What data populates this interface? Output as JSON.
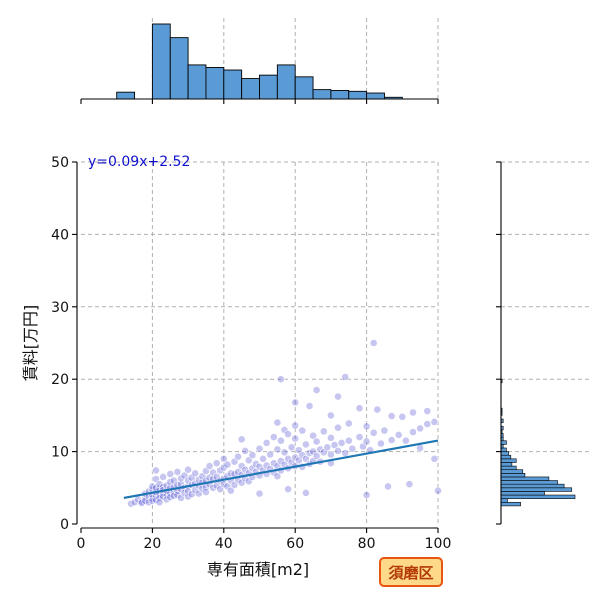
{
  "chart_data": {
    "type": "scatter",
    "xlabel": "専有面積[m2]",
    "ylabel": "賃料[万円]",
    "xlim": [
      0,
      100
    ],
    "ylim": [
      0,
      50
    ],
    "x_ticks": [
      "0",
      "20",
      "40",
      "60",
      "80",
      "100"
    ],
    "y_ticks": [
      "0",
      "10",
      "20",
      "30",
      "40",
      "50"
    ],
    "grid": true,
    "regression": {
      "label": "y=0.09x+2.52",
      "slope": 0.09,
      "intercept": 2.52,
      "x_range": [
        12,
        100
      ]
    },
    "badge": "須磨区",
    "colors": {
      "points": "#5b5bd6",
      "line": "#1f77b4",
      "hist": "#5b9bd5",
      "badge_border": "#e8550e",
      "badge_fill": "#ffd98a"
    },
    "x_hist": {
      "bin_width": 5,
      "bin_starts": [
        10,
        15,
        20,
        25,
        30,
        35,
        40,
        45,
        50,
        55,
        60,
        65,
        70,
        75,
        80,
        85,
        90,
        95
      ],
      "counts": [
        8,
        0,
        88,
        72,
        40,
        37,
        34,
        24,
        28,
        40,
        26,
        11,
        10,
        9,
        7,
        2,
        0,
        0
      ]
    },
    "y_hist": {
      "bin_width": 0.5,
      "bin_starts": [
        2.5,
        3.0,
        3.5,
        4.0,
        4.5,
        5.0,
        5.5,
        6.0,
        6.5,
        7.0,
        7.5,
        8.0,
        8.5,
        9.0,
        9.5,
        10.0,
        10.5,
        11.0,
        11.5,
        12.0,
        12.5,
        13.0,
        13.5,
        14.0,
        14.5,
        15.0,
        15.5,
        16.0,
        19.5
      ],
      "counts": [
        18,
        6,
        68,
        40,
        65,
        58,
        52,
        44,
        22,
        20,
        14,
        10,
        14,
        9,
        7,
        5,
        2,
        5,
        2,
        2,
        1,
        2,
        0,
        2,
        0,
        1,
        1,
        0,
        1
      ]
    },
    "points": [
      [
        14,
        2.8
      ],
      [
        15,
        3.0
      ],
      [
        16,
        3.4
      ],
      [
        17,
        3.1
      ],
      [
        17,
        2.9
      ],
      [
        18,
        3.6
      ],
      [
        18,
        4.2
      ],
      [
        18,
        3.2
      ],
      [
        19,
        3.8
      ],
      [
        19,
        4.5
      ],
      [
        19,
        3.0
      ],
      [
        20,
        3.5
      ],
      [
        20,
        4.0
      ],
      [
        20,
        4.8
      ],
      [
        20,
        5.2
      ],
      [
        20,
        3.2
      ],
      [
        21,
        3.9
      ],
      [
        21,
        4.4
      ],
      [
        21,
        5.0
      ],
      [
        21,
        3.3
      ],
      [
        21,
        6.2
      ],
      [
        21,
        7.4
      ],
      [
        22,
        4.1
      ],
      [
        22,
        3.6
      ],
      [
        22,
        4.9
      ],
      [
        22,
        5.5
      ],
      [
        22,
        3.0
      ],
      [
        23,
        4.3
      ],
      [
        23,
        3.8
      ],
      [
        23,
        5.1
      ],
      [
        23,
        4.7
      ],
      [
        23,
        6.5
      ],
      [
        24,
        4.0
      ],
      [
        24,
        4.6
      ],
      [
        24,
        3.4
      ],
      [
        24,
        5.3
      ],
      [
        25,
        4.2
      ],
      [
        25,
        5.0
      ],
      [
        25,
        3.7
      ],
      [
        25,
        5.8
      ],
      [
        25,
        6.9
      ],
      [
        26,
        4.4
      ],
      [
        26,
        5.1
      ],
      [
        26,
        3.9
      ],
      [
        26,
        6.0
      ],
      [
        27,
        4.6
      ],
      [
        27,
        5.4
      ],
      [
        27,
        4.0
      ],
      [
        27,
        7.2
      ],
      [
        28,
        4.8
      ],
      [
        28,
        5.5
      ],
      [
        28,
        3.6
      ],
      [
        28,
        6.3
      ],
      [
        29,
        5.0
      ],
      [
        29,
        4.3
      ],
      [
        29,
        6.7
      ],
      [
        30,
        5.2
      ],
      [
        30,
        4.5
      ],
      [
        30,
        6.0
      ],
      [
        30,
        3.8
      ],
      [
        30,
        7.5
      ],
      [
        31,
        5.4
      ],
      [
        31,
        4.1
      ],
      [
        31,
        6.4
      ],
      [
        32,
        5.6
      ],
      [
        32,
        4.7
      ],
      [
        32,
        7.0
      ],
      [
        33,
        5.3
      ],
      [
        33,
        6.1
      ],
      [
        33,
        4.2
      ],
      [
        34,
        5.8
      ],
      [
        34,
        6.6
      ],
      [
        34,
        4.9
      ],
      [
        35,
        6.0
      ],
      [
        35,
        5.1
      ],
      [
        35,
        7.3
      ],
      [
        35,
        4.4
      ],
      [
        36,
        5.5
      ],
      [
        36,
        6.4
      ],
      [
        36,
        8.0
      ],
      [
        37,
        6.2
      ],
      [
        37,
        5.0
      ],
      [
        37,
        7.1
      ],
      [
        38,
        6.5
      ],
      [
        38,
        5.3
      ],
      [
        38,
        8.4
      ],
      [
        39,
        6.0
      ],
      [
        39,
        7.4
      ],
      [
        39,
        4.8
      ],
      [
        40,
        6.3
      ],
      [
        40,
        5.5
      ],
      [
        40,
        7.8
      ],
      [
        40,
        9.0
      ],
      [
        41,
        6.6
      ],
      [
        41,
        5.2
      ],
      [
        41,
        8.2
      ],
      [
        42,
        6.0
      ],
      [
        42,
        7.0
      ],
      [
        42,
        4.6
      ],
      [
        43,
        6.9
      ],
      [
        43,
        8.6
      ],
      [
        43,
        5.4
      ],
      [
        44,
        7.2
      ],
      [
        44,
        6.1
      ],
      [
        44,
        9.3
      ],
      [
        45,
        6.8
      ],
      [
        45,
        5.7
      ],
      [
        45,
        8.0
      ],
      [
        46,
        7.5
      ],
      [
        46,
        6.3
      ],
      [
        46,
        10.1
      ],
      [
        47,
        7.0
      ],
      [
        47,
        8.8
      ],
      [
        47,
        5.9
      ],
      [
        48,
        7.7
      ],
      [
        48,
        6.5
      ],
      [
        48,
        9.5
      ],
      [
        49,
        7.2
      ],
      [
        49,
        8.3
      ],
      [
        50,
        7.9
      ],
      [
        50,
        6.7
      ],
      [
        50,
        10.4
      ],
      [
        51,
        7.4
      ],
      [
        51,
        9.0
      ],
      [
        52,
        8.1
      ],
      [
        52,
        6.9
      ],
      [
        52,
        11.2
      ],
      [
        53,
        7.6
      ],
      [
        53,
        9.6
      ],
      [
        54,
        8.4
      ],
      [
        54,
        7.1
      ],
      [
        54,
        12.0
      ],
      [
        55,
        8.0
      ],
      [
        55,
        10.3
      ],
      [
        55,
        6.6
      ],
      [
        56,
        8.7
      ],
      [
        56,
        7.4
      ],
      [
        56,
        11.5
      ],
      [
        57,
        8.2
      ],
      [
        57,
        9.9
      ],
      [
        57,
        13.0
      ],
      [
        58,
        9.0
      ],
      [
        58,
        7.7
      ],
      [
        58,
        12.4
      ],
      [
        59,
        8.5
      ],
      [
        59,
        10.6
      ],
      [
        60,
        9.2
      ],
      [
        60,
        8.0
      ],
      [
        60,
        11.8
      ],
      [
        60,
        13.6
      ],
      [
        61,
        8.8
      ],
      [
        61,
        10.2
      ],
      [
        62,
        9.5
      ],
      [
        62,
        7.9
      ],
      [
        62,
        12.9
      ],
      [
        63,
        9.0
      ],
      [
        63,
        11.0
      ],
      [
        64,
        9.8
      ],
      [
        64,
        8.3
      ],
      [
        65,
        10.0
      ],
      [
        65,
        8.7
      ],
      [
        65,
        12.2
      ],
      [
        66,
        9.4
      ],
      [
        66,
        11.4
      ],
      [
        67,
        10.3
      ],
      [
        67,
        8.6
      ],
      [
        68,
        9.9
      ],
      [
        68,
        12.8
      ],
      [
        69,
        10.6
      ],
      [
        70,
        9.6
      ],
      [
        70,
        11.9
      ],
      [
        70,
        8.4
      ],
      [
        71,
        10.9
      ],
      [
        72,
        10.1
      ],
      [
        72,
        13.3
      ],
      [
        73,
        11.2
      ],
      [
        74,
        9.8
      ],
      [
        75,
        11.5
      ],
      [
        75,
        13.9
      ],
      [
        76,
        10.4
      ],
      [
        78,
        12.0
      ],
      [
        79,
        10.7
      ],
      [
        80,
        11.4
      ],
      [
        80,
        13.5
      ],
      [
        81,
        10.2
      ],
      [
        82,
        12.6
      ],
      [
        84,
        11.1
      ],
      [
        85,
        12.9
      ],
      [
        87,
        11.6
      ],
      [
        89,
        12.3
      ],
      [
        90,
        14.8
      ],
      [
        91,
        11.5
      ],
      [
        93,
        12.7
      ],
      [
        95,
        13.2
      ],
      [
        97,
        13.8
      ],
      [
        99,
        14.1
      ],
      [
        56,
        20.0
      ],
      [
        74,
        20.3
      ],
      [
        82,
        25.0
      ],
      [
        66,
        18.5
      ],
      [
        72,
        17.6
      ],
      [
        60,
        16.8
      ],
      [
        64,
        16.3
      ],
      [
        78,
        16.0
      ],
      [
        83,
        15.8
      ],
      [
        87,
        14.9
      ],
      [
        93,
        15.4
      ],
      [
        97,
        15.6
      ],
      [
        45,
        11.7
      ],
      [
        55,
        14.0
      ],
      [
        70,
        15.0
      ],
      [
        80,
        4.0
      ],
      [
        86,
        5.2
      ],
      [
        92,
        5.5
      ],
      [
        100,
        4.6
      ],
      [
        63,
        4.3
      ],
      [
        58,
        4.8
      ],
      [
        50,
        4.2
      ],
      [
        99,
        9.0
      ],
      [
        95,
        10.5
      ]
    ]
  }
}
